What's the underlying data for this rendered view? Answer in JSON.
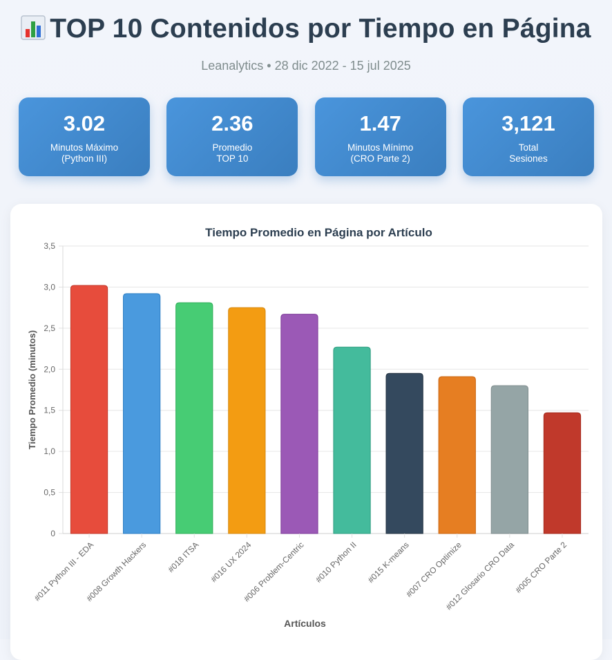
{
  "header": {
    "title": "TOP 10 Contenidos por Tiempo en Página",
    "subtitle": "Leanalytics • 28 dic 2022 - 15 jul 2025"
  },
  "stats": [
    {
      "value": "3.02",
      "label_line1": "Minutos Máximo",
      "label_line2": "(Python III)"
    },
    {
      "value": "2.36",
      "label_line1": "Promedio",
      "label_line2": "TOP 10"
    },
    {
      "value": "1.47",
      "label_line1": "Minutos Mínimo",
      "label_line2": "(CRO Parte 2)"
    },
    {
      "value": "3,121",
      "label_line1": "Total",
      "label_line2": "Sesiones"
    }
  ],
  "chart_data": {
    "type": "bar",
    "title": "Tiempo Promedio en Página por Artículo",
    "xlabel": "Artículos",
    "ylabel": "Tiempo Promedio (minutos)",
    "ylim": [
      0,
      3.5
    ],
    "yticks": [
      "0",
      "0,5",
      "1,0",
      "1,5",
      "2,0",
      "2,5",
      "3,0",
      "3,5"
    ],
    "ytick_values": [
      0,
      0.5,
      1.0,
      1.5,
      2.0,
      2.5,
      3.0,
      3.5
    ],
    "grid": true,
    "categories": [
      "#011 Python III - EDA",
      "#008 Growth Hackers",
      "#018 ITSA",
      "#016 UX 2024",
      "#006 Problem-Centric",
      "#010 Python II",
      "#015 K-means",
      "#007 CRO Optimize",
      "#012 Glosario CRO Data",
      "#005 CRO Parte 2"
    ],
    "values": [
      3.02,
      2.92,
      2.81,
      2.75,
      2.67,
      2.27,
      1.95,
      1.91,
      1.8,
      1.47
    ],
    "colors": [
      "#e74c3c",
      "#4a9ade",
      "#47cc74",
      "#f39c12",
      "#9b59b6",
      "#44bb9c",
      "#34495e",
      "#e67e22",
      "#95a5a6",
      "#c0392b"
    ],
    "border_colors": [
      "#c0392b",
      "#2f7fc4",
      "#2fae58",
      "#d68910",
      "#7d3c98",
      "#2e9c80",
      "#22313f",
      "#c9640f",
      "#7f8c8d",
      "#a4281b"
    ]
  }
}
